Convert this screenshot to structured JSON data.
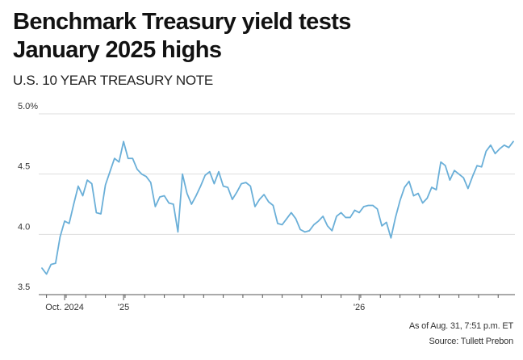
{
  "header": {
    "title_line1": "Benchmark Treasury yield tests",
    "title_line2": "January 2025 highs",
    "subtitle": "U.S. 10 YEAR TREASURY NOTE"
  },
  "footer": {
    "as_of": "As of Aug. 31, 7:51 p.m. ET",
    "source": "Source: Tullett Prebon"
  },
  "colors": {
    "line": "#6aafd8",
    "grid": "#dddddd",
    "axis": "#555555"
  },
  "chart_data": {
    "type": "line",
    "title": "Benchmark Treasury yield tests January 2025 highs",
    "subtitle": "U.S. 10 YEAR TREASURY NOTE",
    "xlabel": "",
    "ylabel": "",
    "ylim": [
      3.5,
      5.0
    ],
    "y_ticks": [
      3.5,
      4.0,
      4.5,
      5.0
    ],
    "y_tick_labels": [
      "3.5",
      "4.0",
      "4.5",
      "5.0%"
    ],
    "x_tick_labels": [
      {
        "label": "Oct. 2024",
        "week_index": 5
      },
      {
        "label": "'25",
        "week_index": 18
      },
      {
        "label": "'26",
        "week_index": 70
      }
    ],
    "grid": true,
    "frequency": "weekly",
    "series": [
      {
        "values": [
          3.72,
          3.67,
          3.75,
          3.76,
          3.98,
          4.11,
          4.09,
          4.25,
          4.4,
          4.32,
          4.45,
          4.42,
          4.18,
          4.17,
          4.41,
          4.52,
          4.63,
          4.6,
          4.77,
          4.63,
          4.63,
          4.54,
          4.5,
          4.48,
          4.43,
          4.23,
          4.31,
          4.32,
          4.26,
          4.25,
          4.02,
          4.5,
          4.34,
          4.25,
          4.32,
          4.4,
          4.49,
          4.52,
          4.42,
          4.52,
          4.4,
          4.39,
          4.29,
          4.35,
          4.42,
          4.43,
          4.4,
          4.23,
          4.29,
          4.33,
          4.27,
          4.24,
          4.09,
          4.08,
          4.13,
          4.18,
          4.13,
          4.04,
          4.02,
          4.03,
          4.08,
          4.11,
          4.15,
          4.07,
          4.03,
          4.15,
          4.18,
          4.14,
          4.14,
          4.2,
          4.18,
          4.23,
          4.24,
          4.24,
          4.21,
          4.07,
          4.1,
          3.97,
          4.14,
          4.28,
          4.39,
          4.44,
          4.32,
          4.34,
          4.26,
          4.3,
          4.39,
          4.37,
          4.6,
          4.57,
          4.45,
          4.53,
          4.5,
          4.47,
          4.38,
          4.48,
          4.57,
          4.56,
          4.69,
          4.74,
          4.67,
          4.71,
          4.74,
          4.72,
          4.77
        ]
      }
    ]
  }
}
